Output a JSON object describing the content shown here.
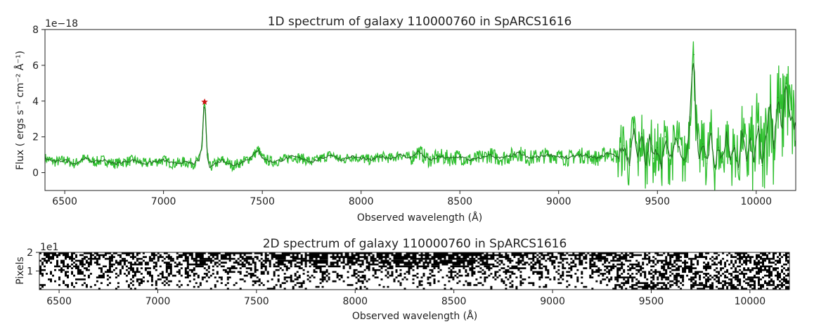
{
  "chart_data": [
    {
      "type": "line",
      "title": "1D spectrum of galaxy 110000760 in SpARCS1616",
      "xlabel": "Observed wavelength ($\\AA$)",
      "ylabel": "Flux ( ergs s⁻¹ cm⁻² Å⁻¹)",
      "y_offset_label": "1e−18",
      "xlim": [
        6400,
        10200
      ],
      "ylim": [
        -1,
        8
      ],
      "x_ticks": [
        6500,
        7000,
        7500,
        8000,
        8500,
        9000,
        9500,
        10000
      ],
      "x_tick_labels": [
        "6500",
        "7000",
        "7500",
        "8000",
        "8500",
        "9000",
        "9500",
        "10000"
      ],
      "y_ticks": [
        0,
        2,
        4,
        6,
        8
      ],
      "y_tick_labels": [
        "0",
        "2",
        "4",
        "6",
        "8"
      ],
      "grid": false,
      "colors": {
        "raw": "#2fbf2f",
        "smoothed": "#1f6b1f",
        "marker": "#cc1111"
      },
      "marker": {
        "x": 7208,
        "y": 3.95,
        "symbol": "star"
      },
      "series": [
        {
          "x": [
            6400,
            6450,
            6500,
            6550,
            6600,
            6650,
            6700,
            6750,
            6800,
            6850,
            6900,
            6950,
            7000,
            7050,
            7100,
            7150,
            7180,
            7195,
            7205,
            7212,
            7220,
            7235,
            7260,
            7300,
            7350,
            7400,
            7450,
            7480,
            7500,
            7550,
            7600,
            7650,
            7700,
            7750,
            7800,
            7850,
            7900,
            7950,
            8000,
            8050,
            8100,
            8150,
            8200,
            8250,
            8290,
            8320,
            8350,
            8400,
            8450,
            8500,
            8550,
            8600,
            8650,
            8700,
            8750,
            8800,
            8850,
            8900,
            8950,
            9000,
            9050,
            9100,
            9150,
            9200,
            9250,
            9300,
            9330,
            9360,
            9380,
            9400,
            9420,
            9440,
            9460,
            9480,
            9500,
            9520,
            9540,
            9560,
            9580,
            9600,
            9620,
            9640,
            9660,
            9675,
            9685,
            9695,
            9710,
            9730,
            9750,
            9770,
            9790,
            9810,
            9830,
            9850,
            9870,
            9890,
            9910,
            9930,
            9950,
            9970,
            9990,
            10010,
            10030,
            10050,
            10070,
            10090,
            10110,
            10130,
            10150,
            10170,
            10200
          ],
          "y": [
            0.8,
            0.6,
            0.7,
            0.5,
            0.8,
            0.6,
            0.7,
            0.5,
            0.6,
            0.7,
            0.5,
            0.6,
            0.7,
            0.5,
            0.6,
            0.5,
            0.7,
            1.5,
            3.9,
            3.5,
            1.0,
            0.3,
            0.5,
            0.7,
            0.4,
            0.6,
            0.9,
            1.3,
            0.8,
            0.6,
            0.7,
            0.9,
            0.8,
            0.6,
            0.8,
            1.0,
            0.7,
            0.9,
            0.8,
            0.7,
            0.9,
            0.8,
            1.0,
            0.8,
            1.2,
            0.9,
            0.7,
            0.9,
            0.8,
            0.9,
            0.7,
            0.8,
            1.0,
            0.8,
            0.9,
            1.1,
            0.8,
            0.9,
            1.0,
            0.9,
            0.8,
            1.0,
            0.9,
            0.8,
            1.1,
            0.9,
            1.5,
            0.4,
            2.8,
            0.6,
            2.2,
            0.3,
            1.9,
            0.8,
            1.4,
            0.5,
            2.0,
            0.7,
            1.2,
            1.9,
            0.9,
            0.6,
            2.5,
            5.5,
            6.6,
            2.8,
            0.8,
            1.6,
            0.5,
            2.2,
            0.3,
            1.4,
            0.6,
            2.1,
            0.5,
            1.5,
            0.2,
            2.4,
            0.8,
            1.8,
            0.6,
            2.6,
            0.4,
            2.0,
            3.8,
            1.5,
            4.2,
            2.5,
            5.0,
            3.2,
            2.5
          ]
        }
      ]
    },
    {
      "type": "heatmap",
      "title": "2D spectrum of galaxy 110000760 in SpARCS1616",
      "xlabel": "Observed wavelength ($\\AA$)",
      "ylabel": "Pixels",
      "y_offset_label": "1e1",
      "xlim": [
        6400,
        10200
      ],
      "ylim": [
        0,
        2
      ],
      "x_ticks": [
        6500,
        7000,
        7500,
        8000,
        8500,
        9000,
        9500,
        10000
      ],
      "x_tick_labels": [
        "6500",
        "7000",
        "7500",
        "8000",
        "8500",
        "9000",
        "9500",
        "10000"
      ],
      "y_ticks": [
        1,
        2
      ],
      "y_tick_labels": [
        "1",
        "2"
      ],
      "colormap": "grayscale"
    }
  ]
}
